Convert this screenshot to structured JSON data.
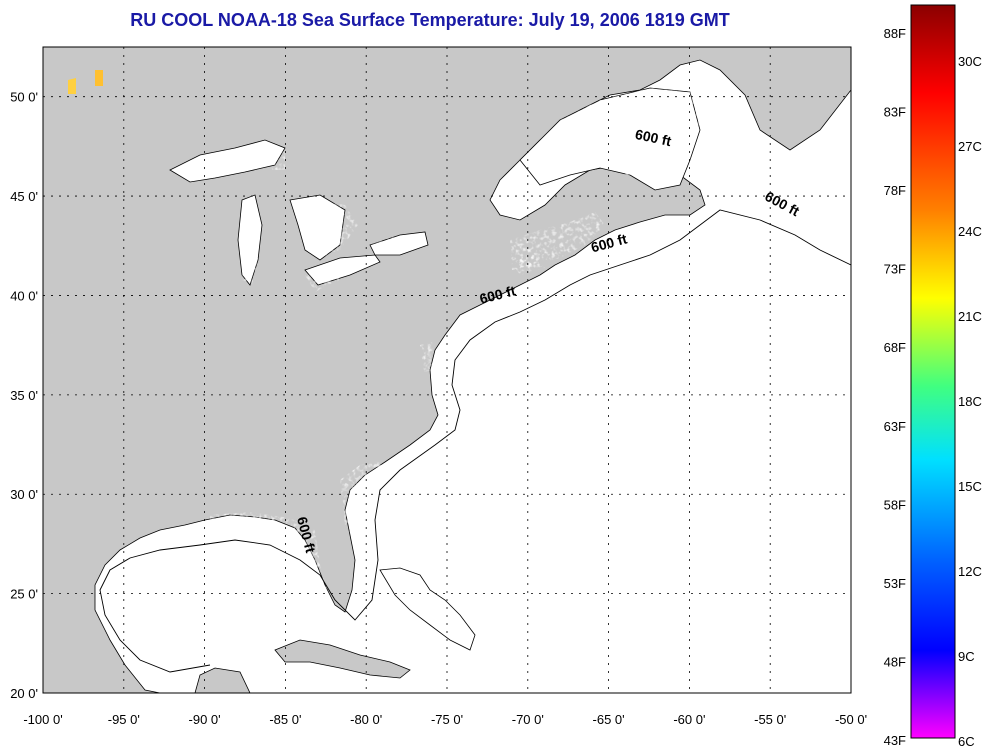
{
  "title": "RU COOL  NOAA-18  Sea Surface Temperature:  July 19, 2006 1819 GMT",
  "map": {
    "lon_range": [
      -100,
      -50
    ],
    "lat_range": [
      20,
      52.5
    ],
    "lon_ticks": [
      "-100 0'",
      "-95 0'",
      "-90 0'",
      "-85 0'",
      "-80 0'",
      "-75 0'",
      "-70 0'",
      "-65 0'",
      "-60 0'",
      "-55 0'",
      "-50 0'"
    ],
    "lat_ticks": [
      "20 0'",
      "25 0'",
      "30 0'",
      "35 0'",
      "40 0'",
      "45 0'",
      "50 0'"
    ],
    "grid": true,
    "land_color": "#c8c8c8",
    "water_color": "#ffffff",
    "contour_labels": [
      {
        "text": "600 ft",
        "lon": -62.3,
        "lat": 47.7,
        "rotate": 12
      },
      {
        "text": "600 ft",
        "lon": -54.4,
        "lat": 44.4,
        "rotate": 28
      },
      {
        "text": "600 ft",
        "lon": -64.9,
        "lat": 42.4,
        "rotate": -15
      },
      {
        "text": "600 ft",
        "lon": -71.8,
        "lat": 39.8,
        "rotate": -14
      },
      {
        "text": "600 ft",
        "lon": -84.0,
        "lat": 27.9,
        "rotate": 75
      }
    ]
  },
  "colorbar": {
    "f_labels": [
      "88F",
      "83F",
      "78F",
      "73F",
      "68F",
      "63F",
      "58F",
      "53F",
      "48F",
      "43F"
    ],
    "c_labels": [
      "30C",
      "27C",
      "24C",
      "21C",
      "18C",
      "15C",
      "12C",
      "9C",
      "6C"
    ],
    "colors": [
      "#8b0000",
      "#ff0000",
      "#ff8000",
      "#ffff00",
      "#00ff80",
      "#00e0ff",
      "#0080ff",
      "#0000ff",
      "#8000ff",
      "#ff00ff"
    ]
  }
}
